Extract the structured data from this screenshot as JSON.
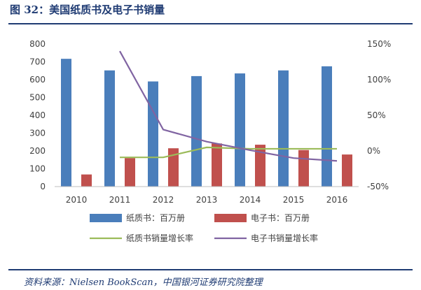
{
  "page": {
    "title": "图 32：美国纸质书及电子书销量",
    "source": "资料来源：Nielsen BookScan，中国银河证券研究院整理"
  },
  "chart_data": {
    "type": "bar",
    "title": "",
    "categories": [
      "2010",
      "2011",
      "2012",
      "2013",
      "2014",
      "2015",
      "2016"
    ],
    "y_left": {
      "ticks": [
        "0",
        "100",
        "200",
        "300",
        "400",
        "500",
        "600",
        "700",
        "800"
      ],
      "ylim": [
        0,
        800
      ]
    },
    "y_right": {
      "ticks": [
        "-50%",
        "0%",
        "50%",
        "100%",
        "150%"
      ],
      "ylim": [
        -50,
        150
      ]
    },
    "series": [
      {
        "name": "纸质书：百万册",
        "type": "bar",
        "axis": "left",
        "color": "#4a7ebb",
        "values": [
          717,
          652,
          590,
          620,
          635,
          652,
          675
        ]
      },
      {
        "name": "电子书：百万册",
        "type": "bar",
        "axis": "left",
        "color": "#c0504d",
        "values": [
          68,
          160,
          215,
          242,
          235,
          205,
          180
        ]
      },
      {
        "name": "纸质书销量增长率",
        "type": "line",
        "axis": "right",
        "color": "#9bbb59",
        "values": [
          null,
          -9,
          -9,
          5,
          3,
          3,
          3
        ]
      },
      {
        "name": "电子书销量增长率",
        "type": "line",
        "axis": "right",
        "color": "#8064a2",
        "values": [
          null,
          140,
          30,
          13,
          1,
          -10,
          -14
        ]
      }
    ],
    "grid": false,
    "legend_position": "bottom"
  }
}
